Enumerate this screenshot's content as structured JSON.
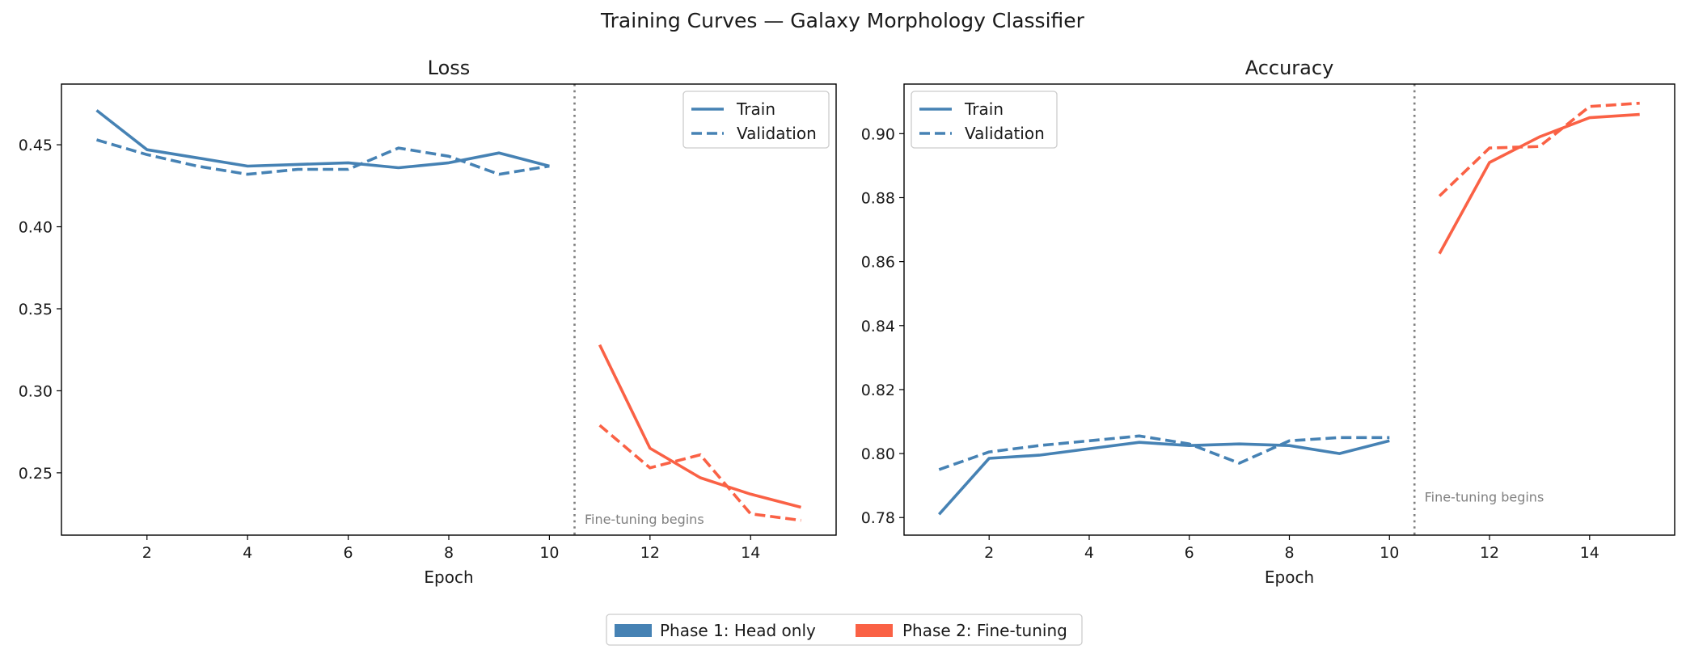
{
  "figure": {
    "title": "Training Curves — Galaxy Morphology Classifier"
  },
  "colors": {
    "phase1": "#4682b4",
    "phase2": "#fa6145",
    "divider": "#7f7f7f",
    "annotation": "#808080"
  },
  "figure_legend": {
    "placement": "bottom-center",
    "items": [
      {
        "label": "Phase 1: Head only",
        "color": "#4682b4"
      },
      {
        "label": "Phase 2: Fine-tuning",
        "color": "#fa6145"
      }
    ]
  },
  "chart_data": [
    {
      "type": "line",
      "title": "Loss",
      "xlabel": "Epoch",
      "ylabel": "",
      "xlim": [
        0.3,
        15.7
      ],
      "ylim": [
        0.212,
        0.487
      ],
      "xticks": [
        2,
        4,
        6,
        8,
        10,
        12,
        14
      ],
      "xtick_labels": [
        "2",
        "4",
        "6",
        "8",
        "10",
        "12",
        "14"
      ],
      "yticks": [
        0.25,
        0.3,
        0.35,
        0.4,
        0.45
      ],
      "ytick_labels": [
        "0.25",
        "0.30",
        "0.35",
        "0.40",
        "0.45"
      ],
      "legend": {
        "placement": "top-right",
        "entries": [
          {
            "label": "Train",
            "style": "solid"
          },
          {
            "label": "Validation",
            "style": "dashed"
          }
        ]
      },
      "divider_x": 10.5,
      "annotation": {
        "text": "Fine-tuning begins",
        "x": 10.7,
        "y": 0.219
      },
      "series": [
        {
          "phase": "phase1",
          "style": "solid",
          "x": [
            1,
            2,
            3,
            4,
            5,
            6,
            7,
            8,
            9,
            10
          ],
          "y": [
            0.471,
            0.447,
            0.442,
            0.437,
            0.438,
            0.439,
            0.436,
            0.439,
            0.445,
            0.437
          ]
        },
        {
          "phase": "phase1",
          "style": "dashed",
          "x": [
            1,
            2,
            3,
            4,
            5,
            6,
            7,
            8,
            9,
            10
          ],
          "y": [
            0.453,
            0.444,
            0.437,
            0.432,
            0.435,
            0.435,
            0.448,
            0.443,
            0.432,
            0.437
          ]
        },
        {
          "phase": "phase2",
          "style": "solid",
          "x": [
            11,
            12,
            13,
            14,
            15
          ],
          "y": [
            0.328,
            0.265,
            0.247,
            0.237,
            0.229
          ]
        },
        {
          "phase": "phase2",
          "style": "dashed",
          "x": [
            11,
            12,
            13,
            14,
            15
          ],
          "y": [
            0.279,
            0.253,
            0.261,
            0.225,
            0.221
          ]
        }
      ]
    },
    {
      "type": "line",
      "title": "Accuracy",
      "xlabel": "Epoch",
      "ylabel": "",
      "xlim": [
        0.3,
        15.7
      ],
      "ylim": [
        0.7745,
        0.9155
      ],
      "xticks": [
        2,
        4,
        6,
        8,
        10,
        12,
        14
      ],
      "xtick_labels": [
        "2",
        "4",
        "6",
        "8",
        "10",
        "12",
        "14"
      ],
      "yticks": [
        0.78,
        0.8,
        0.82,
        0.84,
        0.86,
        0.88,
        0.9
      ],
      "ytick_labels": [
        "0.78",
        "0.80",
        "0.82",
        "0.84",
        "0.86",
        "0.88",
        "0.90"
      ],
      "legend": {
        "placement": "top-left",
        "entries": [
          {
            "label": "Train",
            "style": "solid"
          },
          {
            "label": "Validation",
            "style": "dashed"
          }
        ]
      },
      "divider_x": 10.5,
      "annotation": {
        "text": "Fine-tuning begins",
        "x": 10.7,
        "y": 0.785
      },
      "series": [
        {
          "phase": "phase1",
          "style": "solid",
          "x": [
            1,
            2,
            3,
            4,
            5,
            6,
            7,
            8,
            9,
            10
          ],
          "y": [
            0.781,
            0.7985,
            0.7995,
            0.8015,
            0.8035,
            0.8025,
            0.803,
            0.8025,
            0.8,
            0.804
          ]
        },
        {
          "phase": "phase1",
          "style": "dashed",
          "x": [
            1,
            2,
            3,
            4,
            5,
            6,
            7,
            8,
            9,
            10
          ],
          "y": [
            0.795,
            0.8005,
            0.8025,
            0.804,
            0.8055,
            0.803,
            0.797,
            0.804,
            0.805,
            0.805
          ]
        },
        {
          "phase": "phase2",
          "style": "solid",
          "x": [
            11,
            12,
            13,
            14,
            15
          ],
          "y": [
            0.8625,
            0.891,
            0.899,
            0.905,
            0.906
          ]
        },
        {
          "phase": "phase2",
          "style": "dashed",
          "x": [
            11,
            12,
            13,
            14,
            15
          ],
          "y": [
            0.8805,
            0.8955,
            0.896,
            0.9085,
            0.9095
          ]
        }
      ]
    }
  ]
}
